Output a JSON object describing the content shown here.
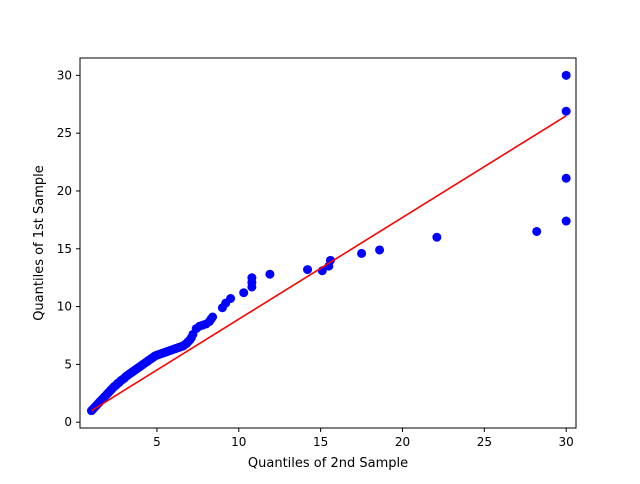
{
  "chart_data": {
    "type": "scatter",
    "xlabel": "Quantiles of 2nd Sample",
    "ylabel": "Quantiles of 1st Sample",
    "xlim": [
      0.3,
      30.6
    ],
    "ylim": [
      -0.5,
      31.5
    ],
    "x_ticks": [
      5,
      10,
      15,
      20,
      25,
      30
    ],
    "y_ticks": [
      0,
      5,
      10,
      15,
      20,
      25,
      30
    ],
    "grid": false,
    "colors": {
      "points": "#0000ff",
      "line": "#ff0000"
    },
    "series": [
      {
        "type": "scatter",
        "x": [
          1.0,
          1.1,
          1.2,
          1.3,
          1.4,
          1.5,
          1.6,
          1.7,
          1.8,
          1.9,
          2.0,
          2.1,
          2.2,
          2.3,
          2.4,
          2.5,
          2.6,
          2.7,
          2.8,
          2.9,
          3.0,
          3.1,
          3.2,
          3.3,
          3.4,
          3.5,
          3.6,
          3.7,
          3.8,
          3.9,
          4.0,
          4.1,
          4.2,
          4.3,
          4.4,
          4.5,
          4.6,
          4.7,
          4.8,
          4.9,
          5.0,
          5.1,
          5.2,
          5.3,
          5.4,
          5.5,
          5.6,
          5.7,
          5.8,
          5.9,
          6.0,
          6.1,
          6.2,
          6.3,
          6.4,
          6.5,
          6.6,
          6.7,
          6.8,
          6.9,
          7.0,
          7.1,
          7.2,
          7.4,
          7.6,
          7.8,
          8.0,
          8.2,
          8.3,
          8.4,
          9.0,
          9.2,
          9.5,
          10.3,
          10.8,
          10.8,
          10.8,
          11.9,
          14.2,
          15.1,
          15.5,
          15.6,
          17.5,
          18.6,
          22.1,
          28.2,
          30.0,
          30.0,
          30.0,
          30.0
        ],
        "y": [
          1.0,
          1.15,
          1.3,
          1.45,
          1.6,
          1.75,
          1.9,
          2.05,
          2.2,
          2.35,
          2.5,
          2.65,
          2.8,
          2.95,
          3.1,
          3.2,
          3.35,
          3.45,
          3.6,
          3.7,
          3.8,
          3.95,
          4.05,
          4.15,
          4.25,
          4.35,
          4.45,
          4.55,
          4.65,
          4.75,
          4.85,
          4.95,
          5.05,
          5.15,
          5.25,
          5.35,
          5.45,
          5.55,
          5.65,
          5.75,
          5.8,
          5.85,
          5.9,
          5.95,
          6.0,
          6.05,
          6.1,
          6.15,
          6.2,
          6.25,
          6.3,
          6.35,
          6.4,
          6.45,
          6.5,
          6.55,
          6.6,
          6.7,
          6.8,
          6.95,
          7.1,
          7.3,
          7.6,
          8.1,
          8.3,
          8.4,
          8.5,
          8.7,
          8.9,
          9.1,
          9.9,
          10.3,
          10.7,
          11.2,
          11.7,
          12.1,
          12.5,
          12.8,
          13.2,
          13.1,
          13.5,
          14.0,
          14.6,
          14.9,
          16.0,
          16.5,
          17.4,
          21.1,
          26.9,
          30.0
        ]
      },
      {
        "type": "line",
        "x": [
          1.0,
          30.0
        ],
        "y": [
          1.0,
          26.5
        ]
      }
    ]
  }
}
